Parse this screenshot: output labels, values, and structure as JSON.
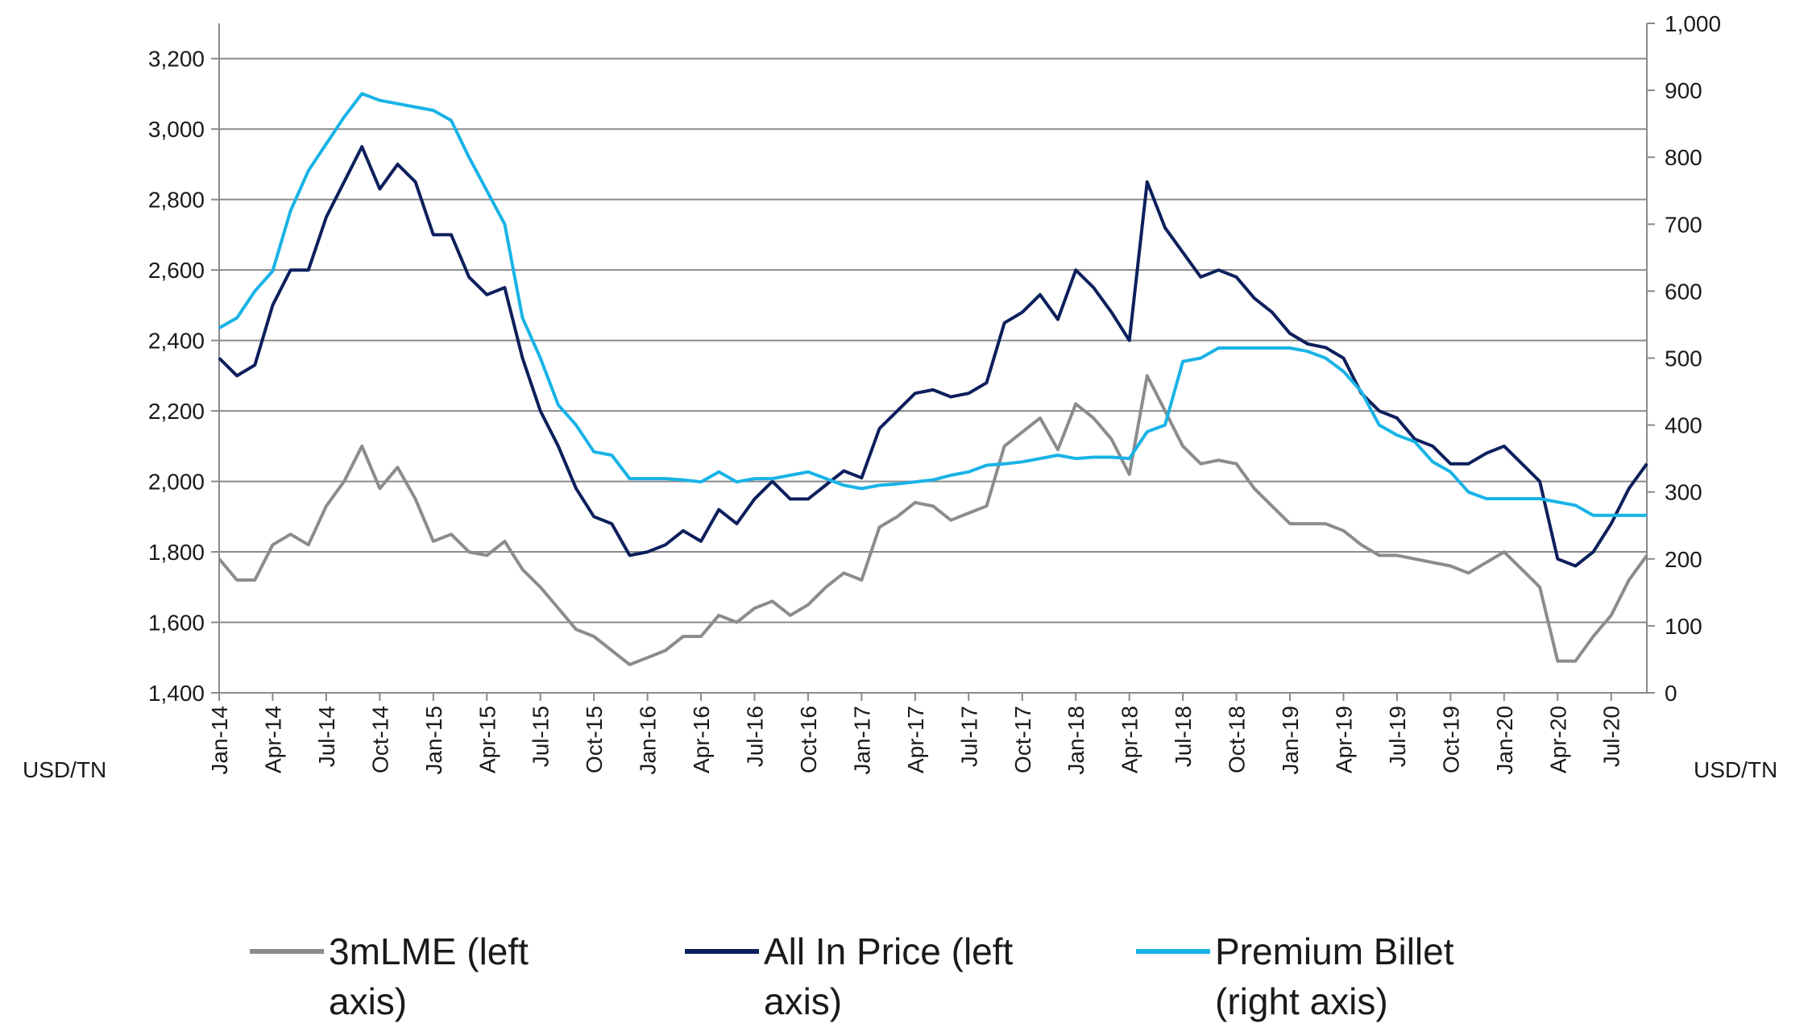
{
  "chart_data": {
    "type": "line",
    "categories": [
      "Jan-14",
      null,
      null,
      "Apr-14",
      null,
      null,
      "Jul-14",
      null,
      null,
      "Oct-14",
      null,
      null,
      "Jan-15",
      null,
      null,
      "Apr-15",
      null,
      null,
      "Jul-15",
      null,
      null,
      "Oct-15",
      null,
      null,
      "Jan-16",
      null,
      null,
      "Apr-16",
      null,
      null,
      "Jul-16",
      null,
      null,
      "Oct-16",
      null,
      null,
      "Jan-17",
      null,
      null,
      "Apr-17",
      null,
      null,
      "Jul-17",
      null,
      null,
      "Oct-17",
      null,
      null,
      "Jan-18",
      null,
      null,
      "Apr-18",
      null,
      null,
      "Jul-18",
      null,
      null,
      "Oct-18",
      null,
      null,
      "Jan-19",
      null,
      null,
      "Apr-19",
      null,
      null,
      "Jul-19",
      null,
      null,
      "Oct-19",
      null,
      null,
      "Jan-20",
      null,
      null,
      "Apr-20",
      null,
      null,
      "Jul-20",
      null,
      null
    ],
    "series": [
      {
        "name": "3mLME (left axis)",
        "color": "#8c8c8c",
        "axis": "y",
        "values": [
          1780,
          1720,
          1720,
          1820,
          1850,
          1820,
          1930,
          2000,
          2100,
          1980,
          2040,
          1950,
          1830,
          1850,
          1800,
          1790,
          1830,
          1750,
          1700,
          1640,
          1580,
          1560,
          1520,
          1480,
          1500,
          1520,
          1560,
          1560,
          1620,
          1600,
          1640,
          1660,
          1620,
          1650,
          1700,
          1740,
          1720,
          1870,
          1900,
          1940,
          1930,
          1890,
          1910,
          1930,
          2100,
          2140,
          2180,
          2090,
          2220,
          2180,
          2120,
          2020,
          2300,
          2200,
          2100,
          2050,
          2060,
          2050,
          1980,
          1930,
          1880,
          1880,
          1880,
          1860,
          1820,
          1790,
          1790,
          1780,
          1770,
          1760,
          1740,
          1770,
          1800,
          1750,
          1700,
          1490,
          1490,
          1560,
          1620,
          1720,
          1790
        ]
      },
      {
        "name": "All In Price (left axis)",
        "color": "#0d1f5c",
        "axis": "y",
        "values": [
          2350,
          2300,
          2330,
          2500,
          2600,
          2600,
          2750,
          2850,
          2950,
          2830,
          2900,
          2850,
          2700,
          2700,
          2580,
          2530,
          2550,
          2350,
          2200,
          2100,
          1980,
          1900,
          1880,
          1790,
          1800,
          1820,
          1860,
          1830,
          1920,
          1880,
          1950,
          2000,
          1950,
          1950,
          1990,
          2030,
          2010,
          2150,
          2200,
          2250,
          2260,
          2240,
          2250,
          2280,
          2450,
          2480,
          2530,
          2460,
          2600,
          2550,
          2480,
          2400,
          2850,
          2720,
          2650,
          2580,
          2600,
          2580,
          2520,
          2480,
          2420,
          2390,
          2380,
          2350,
          2250,
          2200,
          2180,
          2120,
          2100,
          2050,
          2050,
          2080,
          2100,
          2050,
          2000,
          1780,
          1760,
          1800,
          1880,
          1980,
          2050
        ]
      },
      {
        "name": "Premium Billet (right axis)",
        "color": "#19b3e6",
        "axis": "y2",
        "values": [
          545,
          560,
          600,
          630,
          720,
          780,
          820,
          860,
          895,
          885,
          880,
          875,
          870,
          855,
          800,
          750,
          700,
          560,
          500,
          430,
          400,
          360,
          355,
          320,
          320,
          320,
          318,
          315,
          330,
          315,
          320,
          320,
          325,
          330,
          320,
          310,
          305,
          310,
          312,
          315,
          318,
          325,
          330,
          340,
          342,
          345,
          350,
          355,
          350,
          352,
          352,
          350,
          390,
          400,
          495,
          500,
          515,
          515,
          515,
          515,
          515,
          510,
          500,
          480,
          450,
          400,
          385,
          375,
          345,
          330,
          300,
          290,
          290,
          290,
          290,
          285,
          280,
          265,
          265,
          265,
          265
        ]
      }
    ],
    "ylabel": "USD/TN",
    "y2label": "USD/TN",
    "ylim": [
      1400,
      3300
    ],
    "yticks": [
      {
        "value": 1400,
        "label": "1,400"
      },
      {
        "value": 1600,
        "label": "1,600"
      },
      {
        "value": 1800,
        "label": "1,800"
      },
      {
        "value": 2000,
        "label": "2,000"
      },
      {
        "value": 2200,
        "label": "2,200"
      },
      {
        "value": 2400,
        "label": "2,400"
      },
      {
        "value": 2600,
        "label": "2,600"
      },
      {
        "value": 2800,
        "label": "2,800"
      },
      {
        "value": 3000,
        "label": "3,000"
      },
      {
        "value": 3200,
        "label": "3,200"
      }
    ],
    "y2lim": [
      0,
      1000
    ],
    "y2ticks": [
      0,
      100,
      200,
      300,
      400,
      500,
      600,
      700,
      800,
      900,
      {
        "value": 1000,
        "label": "1,000"
      }
    ],
    "grid": true,
    "legend": "bottom"
  }
}
